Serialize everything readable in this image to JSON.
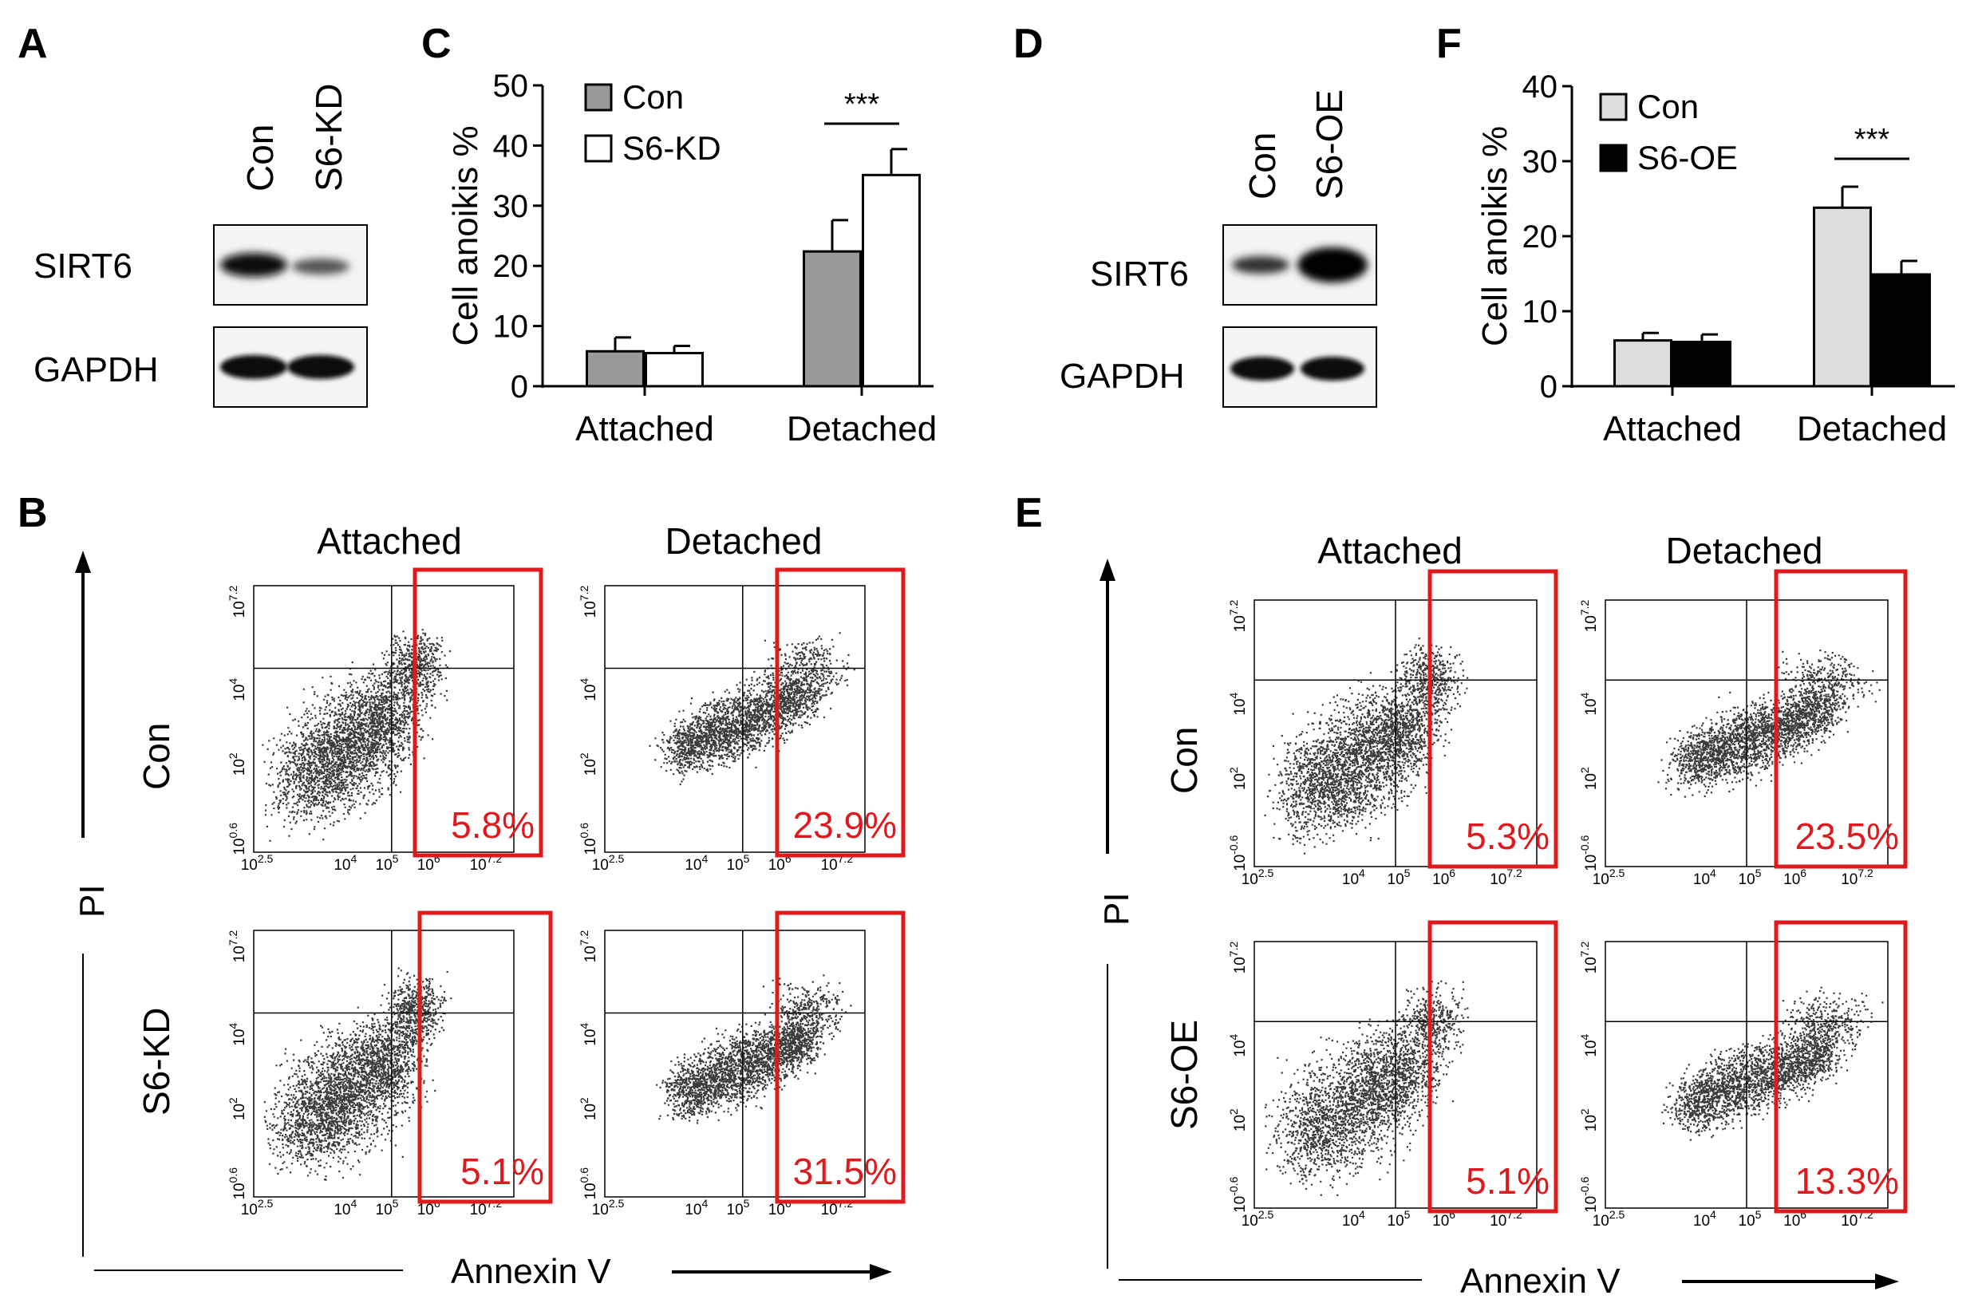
{
  "panel_labels": {
    "a": "A",
    "b": "B",
    "c": "C",
    "d": "D",
    "e": "E",
    "f": "F"
  },
  "blots": {
    "kd": {
      "lanes": [
        "Con",
        "S6-KD"
      ],
      "proteins": [
        "SIRT6",
        "GAPDH"
      ]
    },
    "oe": {
      "lanes": [
        "Con",
        "S6-OE"
      ],
      "proteins": [
        "SIRT6",
        "GAPDH"
      ]
    }
  },
  "flow_axes": {
    "x_label": "Annexin V",
    "y_label": "PI",
    "x_ticks": [
      {
        "b": "10",
        "e": "2.5"
      },
      {
        "b": "10",
        "e": "4"
      },
      {
        "b": "10",
        "e": "5"
      },
      {
        "b": "10",
        "e": "6"
      },
      {
        "b": "10",
        "e": "7.2"
      }
    ],
    "y_ticks": [
      {
        "b": "10",
        "e": "0.6"
      },
      {
        "b": "10",
        "e": "2"
      },
      {
        "b": "10",
        "e": "4"
      },
      {
        "b": "10",
        "e": "7.2"
      }
    ],
    "y_ticks_e": [
      {
        "b": "10",
        "e": "-0.6"
      },
      {
        "b": "10",
        "e": "2"
      },
      {
        "b": "10",
        "e": "4"
      },
      {
        "b": "10",
        "e": "7.2"
      }
    ],
    "x_ticks_e": [
      {
        "b": "10",
        "e": "2.5"
      },
      {
        "b": "10",
        "e": "4"
      },
      {
        "b": "10",
        "e": "5"
      },
      {
        "b": "10",
        "e": "6"
      },
      {
        "b": "10",
        "e": "7.2"
      }
    ]
  },
  "flow_b": {
    "columns": [
      "Attached",
      "Detached"
    ],
    "rows": [
      "Con",
      "S6-KD"
    ],
    "percentages": [
      [
        "5.8%",
        "23.9%"
      ],
      [
        "5.1%",
        "31.5%"
      ]
    ]
  },
  "flow_e": {
    "columns": [
      "Attached",
      "Detached"
    ],
    "rows": [
      "Con",
      "S6-OE"
    ],
    "percentages": [
      [
        "5.3%",
        "23.5%"
      ],
      [
        "5.1%",
        "13.3%"
      ]
    ]
  },
  "chart_data": [
    {
      "id": "C",
      "type": "bar",
      "categories": [
        "Attached",
        "Detached"
      ],
      "series": [
        {
          "name": "Con",
          "values": [
            5.8,
            22.4
          ],
          "errors": [
            2.3,
            5.2
          ],
          "color": "#999999"
        },
        {
          "name": "S6-KD",
          "values": [
            5.5,
            35.1
          ],
          "errors": [
            1.2,
            4.3
          ],
          "color": "#ffffff"
        }
      ],
      "ylabel": "Cell anoikis %",
      "ylim": [
        0,
        50
      ],
      "yticks": [
        0,
        10,
        20,
        30,
        40,
        50
      ],
      "significance": "***",
      "legend": "top-left"
    },
    {
      "id": "F",
      "type": "bar",
      "categories": [
        "Attached",
        "Detached"
      ],
      "series": [
        {
          "name": "Con",
          "values": [
            6.1,
            23.8
          ],
          "errors": [
            1.0,
            2.8
          ],
          "color": "#dddddd"
        },
        {
          "name": "S6-OE",
          "values": [
            5.9,
            14.9
          ],
          "errors": [
            1.0,
            1.8
          ],
          "color": "#000000"
        }
      ],
      "ylabel": "Cell anoikis %",
      "ylim": [
        0,
        40
      ],
      "yticks": [
        0,
        10,
        20,
        30,
        40
      ],
      "significance": "***",
      "legend": "top-left"
    }
  ]
}
